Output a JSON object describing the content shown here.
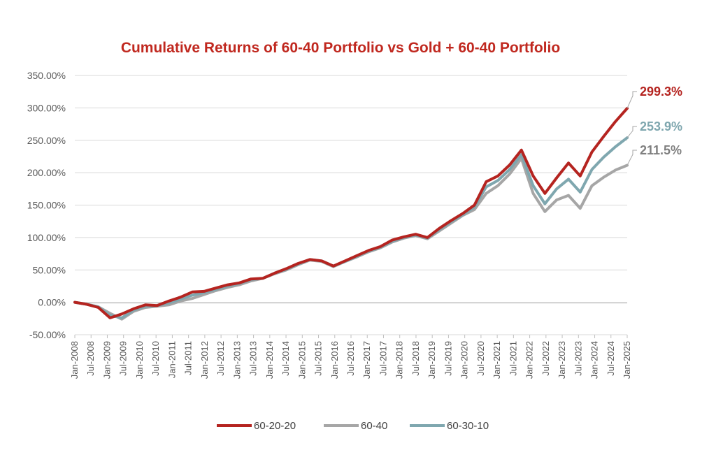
{
  "chart_data": {
    "type": "line",
    "title": "Cumulative Returns of 60-40 Portfolio vs Gold + 60-40 Portfolio",
    "title_color": "#C0281F",
    "xlabel": "",
    "ylabel": "",
    "ylim": [
      -50,
      350
    ],
    "yticks": [
      "-50.00%",
      "0.00%",
      "50.00%",
      "100.00%",
      "150.00%",
      "200.00%",
      "250.00%",
      "300.00%",
      "350.00%"
    ],
    "x_ticks": [
      "Jan-2008",
      "Jul-2008",
      "Jan-2009",
      "Jul-2009",
      "Jan-2010",
      "Jul-2010",
      "Jan-2011",
      "Jul-2011",
      "Jan-2012",
      "Jul-2012",
      "Jan-2013",
      "Jul-2013",
      "Jan-2014",
      "Jul-2014",
      "Jan-2015",
      "Jul-2015",
      "Jan-2016",
      "Jul-2016",
      "Jan-2017",
      "Jul-2017",
      "Jan-2018",
      "Jul-2018",
      "Jan-2019",
      "Jul-2019",
      "Jan-2020",
      "Jul-2020",
      "Jan-2021",
      "Jul-2021",
      "Jan-2022",
      "Jul-2022",
      "Jan-2023",
      "Jul-2023",
      "Jan-2024",
      "Jul-2024",
      "Jan-2025"
    ],
    "grid": true,
    "legend_position": "bottom",
    "series": [
      {
        "name": "60-20-20",
        "color": "#B52420",
        "end_label": "299.3%",
        "values": [
          0,
          -3,
          -8,
          -24,
          -18,
          -10,
          -4,
          -5,
          2,
          8,
          16,
          17,
          22,
          27,
          30,
          36,
          37,
          45,
          52,
          60,
          66,
          64,
          56,
          64,
          72,
          80,
          86,
          96,
          101,
          105,
          100,
          114,
          126,
          137,
          150,
          186,
          195,
          212,
          235,
          195,
          168,
          192,
          215,
          195,
          232,
          256,
          279,
          299.3
        ]
      },
      {
        "name": "60-40",
        "color": "#A6A6A6",
        "end_label": "211.5%",
        "values": [
          0,
          -3,
          -7,
          -17,
          -26,
          -14,
          -8,
          -6,
          -4,
          2,
          6,
          12,
          18,
          23,
          27,
          33,
          37,
          44,
          50,
          58,
          65,
          63,
          55,
          63,
          70,
          78,
          84,
          93,
          99,
          103,
          98,
          110,
          122,
          134,
          143,
          168,
          180,
          198,
          222,
          168,
          140,
          158,
          165,
          145,
          180,
          193,
          204,
          211.5
        ]
      },
      {
        "name": "60-30-10",
        "color": "#7FA7AF",
        "end_label": "253.9%",
        "values": [
          0,
          -3,
          -7,
          -20,
          -24,
          -12,
          -6,
          -5,
          -1,
          5,
          11,
          15,
          20,
          25,
          29,
          35,
          37,
          45,
          51,
          59,
          66,
          64,
          56,
          63,
          71,
          79,
          85,
          94,
          100,
          104,
          99,
          112,
          124,
          135,
          147,
          178,
          188,
          205,
          228,
          180,
          152,
          175,
          190,
          170,
          205,
          224,
          240,
          253.9
        ]
      }
    ]
  }
}
